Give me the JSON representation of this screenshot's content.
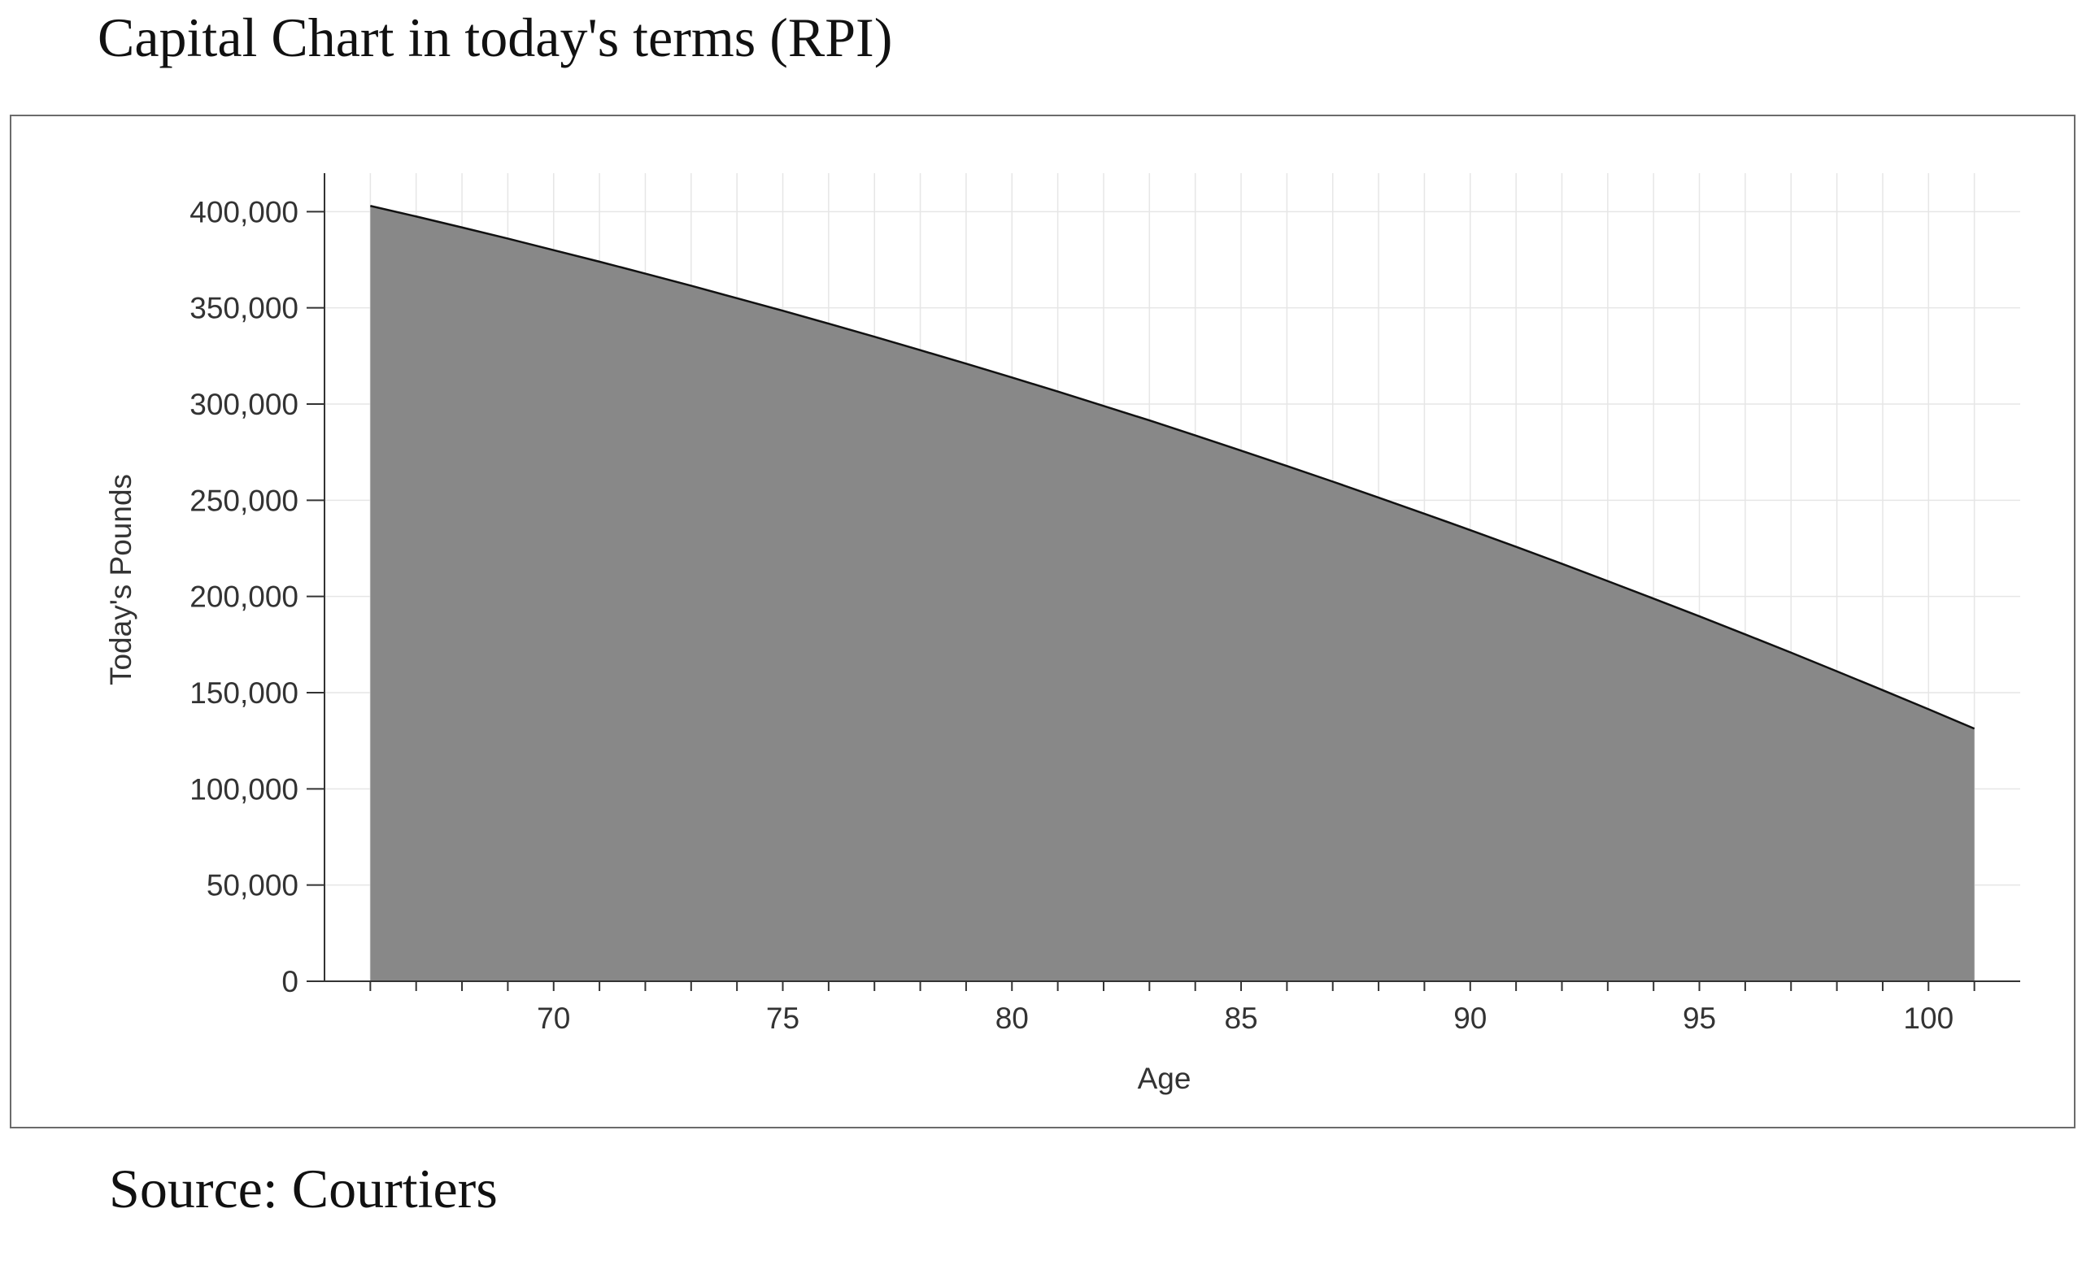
{
  "title": "Capital Chart in today's terms (RPI)",
  "source": "Source: Courtiers",
  "chart_data": {
    "type": "area",
    "xlabel": "Age",
    "ylabel": "Today's Pounds",
    "xlim": [
      65,
      102
    ],
    "ylim": [
      0,
      420000
    ],
    "x_ticks": [
      70,
      75,
      80,
      85,
      90,
      95,
      100
    ],
    "x_tick_labels": [
      "70",
      "75",
      "80",
      "85",
      "90",
      "95",
      "100"
    ],
    "y_ticks": [
      0,
      50000,
      100000,
      150000,
      200000,
      250000,
      300000,
      350000,
      400000
    ],
    "y_tick_labels": [
      "0",
      "50,000",
      "100,000",
      "150,000",
      "200,000",
      "250,000",
      "300,000",
      "350,000",
      "400,000"
    ],
    "grid": true,
    "fill_color": "#888888",
    "line_color": "#111111",
    "series": [
      {
        "x": [
          66,
          67,
          68,
          69,
          70,
          71,
          72,
          73,
          74,
          75,
          76,
          77,
          78,
          79,
          80,
          81,
          82,
          83,
          84,
          85,
          86,
          87,
          88,
          89,
          90,
          91,
          92,
          93,
          94,
          95,
          96,
          97,
          98,
          99,
          100,
          101
        ],
        "y": [
          403000,
          397500,
          391800,
          386000,
          380000,
          374000,
          367800,
          361500,
          355000,
          348500,
          341800,
          335000,
          328000,
          321000,
          313800,
          306500,
          299000,
          291500,
          283700,
          275800,
          267800,
          259700,
          251400,
          243000,
          234500,
          225800,
          217000,
          208000,
          198900,
          189700,
          180300,
          170800,
          161100,
          151300,
          141400,
          131300
        ]
      }
    ]
  }
}
